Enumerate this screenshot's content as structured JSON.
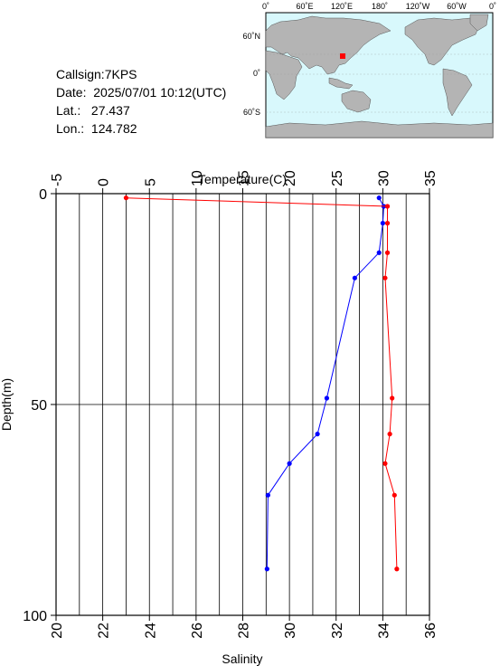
{
  "station": {
    "callsign_label": "Callsign:",
    "callsign": "7KPS",
    "date_label": "Date:",
    "date": "2025/07/01 10:12(UTC)",
    "lat_label": "Lat.:",
    "lat": "27.437",
    "lon_label": "Lon.:",
    "lon": "124.782"
  },
  "map": {
    "top_labels": [
      "0˚",
      "60˚E",
      "120˚E",
      "180˚",
      "120˚W",
      "60˚W",
      "0˚"
    ],
    "left_labels": [
      "60˚N",
      "0˚",
      "60˚S"
    ],
    "colors": {
      "ocean": "#d8f8fc",
      "land": "#b4b4b4",
      "marker": "#ff0000"
    }
  },
  "chart_data": {
    "type": "line",
    "y_axis": {
      "label": "Depth(m)",
      "range": [
        0,
        100
      ],
      "inverted": true,
      "ticks": [
        0,
        50,
        100
      ]
    },
    "x_top": {
      "label": "Temperature(C)",
      "range": [
        -5,
        35
      ],
      "ticks": [
        -5,
        0,
        5,
        10,
        15,
        20,
        25,
        30,
        35
      ]
    },
    "x_bottom": {
      "label": "Salinity",
      "range": [
        20,
        36
      ],
      "ticks": [
        20,
        22,
        24,
        26,
        28,
        30,
        32,
        34,
        36
      ]
    },
    "grid": {
      "vertical_every_temp": 2.5,
      "horizontal_at_depth": [
        50
      ]
    },
    "series": [
      {
        "axis": "x_top",
        "color": "#0000ff",
        "points": [
          {
            "x": 29.6,
            "depth": 1
          },
          {
            "x": 30.1,
            "depth": 3
          },
          {
            "x": 30.0,
            "depth": 7
          },
          {
            "x": 29.6,
            "depth": 14
          },
          {
            "x": 27.0,
            "depth": 20
          },
          {
            "x": 24.0,
            "depth": 48.5
          },
          {
            "x": 23.0,
            "depth": 57
          },
          {
            "x": 20.0,
            "depth": 64
          },
          {
            "x": 17.7,
            "depth": 71.5
          },
          {
            "x": 17.6,
            "depth": 89
          }
        ]
      },
      {
        "axis": "x_bottom",
        "color": "#ff0000",
        "points": [
          {
            "x": 23.0,
            "depth": 1
          },
          {
            "x": 34.2,
            "depth": 3
          },
          {
            "x": 34.2,
            "depth": 7
          },
          {
            "x": 34.2,
            "depth": 14
          },
          {
            "x": 34.1,
            "depth": 20
          },
          {
            "x": 34.4,
            "depth": 48.5
          },
          {
            "x": 34.3,
            "depth": 57
          },
          {
            "x": 34.1,
            "depth": 64
          },
          {
            "x": 34.5,
            "depth": 71.5
          },
          {
            "x": 34.6,
            "depth": 89
          }
        ]
      }
    ]
  }
}
